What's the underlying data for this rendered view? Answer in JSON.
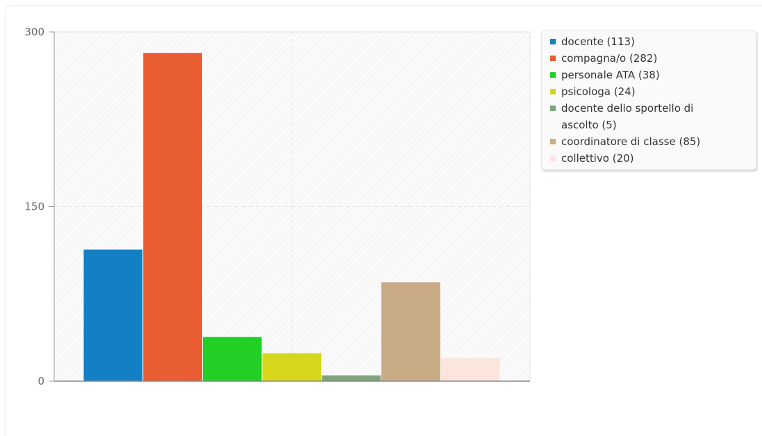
{
  "chart_data": {
    "type": "bar",
    "ylim": [
      0,
      300
    ],
    "yticks": [
      "0",
      "150",
      "300"
    ],
    "grid": true,
    "legend_position": "top-right",
    "series": [
      {
        "name": "docente (113)",
        "value": 113,
        "color": "#1380c6"
      },
      {
        "name": "compagna/o (282)",
        "value": 282,
        "color": "#e85e32"
      },
      {
        "name": "personale ATA (38)",
        "value": 38,
        "color": "#21cf25"
      },
      {
        "name": "psicologa (24)",
        "value": 24,
        "color": "#d6d61b"
      },
      {
        "name": "docente dello sportello di ascolto (5)",
        "value": 5,
        "color": "#7fa57f"
      },
      {
        "name": "coordinatore di classe (85)",
        "value": 85,
        "color": "#c8aa84"
      },
      {
        "name": "collettivo (20)",
        "value": 20,
        "color": "#fbe5dc"
      }
    ]
  }
}
